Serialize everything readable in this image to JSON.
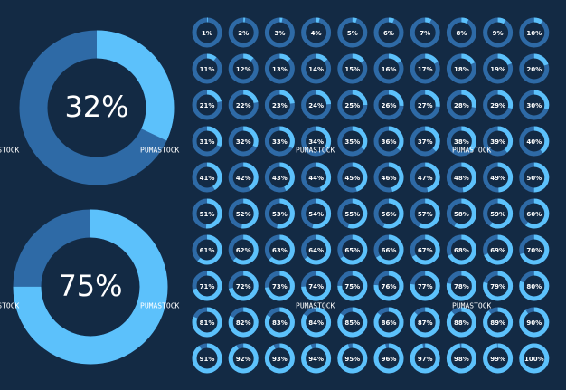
{
  "big_rings": {
    "values": [
      32,
      75
    ],
    "value_labels": [
      "32%",
      "75%"
    ]
  },
  "small_rings": {
    "values": [
      1,
      2,
      3,
      4,
      5,
      6,
      7,
      8,
      9,
      10,
      11,
      12,
      13,
      14,
      15,
      16,
      17,
      18,
      19,
      20,
      21,
      22,
      23,
      24,
      25,
      26,
      27,
      28,
      29,
      30,
      31,
      32,
      33,
      34,
      35,
      36,
      37,
      38,
      39,
      40,
      41,
      42,
      43,
      44,
      45,
      46,
      47,
      48,
      49,
      50,
      51,
      52,
      53,
      54,
      55,
      56,
      57,
      58,
      59,
      60,
      61,
      62,
      63,
      64,
      65,
      66,
      67,
      68,
      69,
      70,
      71,
      72,
      73,
      74,
      75,
      76,
      77,
      78,
      79,
      80,
      81,
      82,
      83,
      84,
      85,
      86,
      87,
      88,
      89,
      90,
      91,
      92,
      93,
      94,
      95,
      96,
      97,
      98,
      99,
      100
    ],
    "value_labels": [
      "1%",
      "2%",
      "3%",
      "4%",
      "5%",
      "6%",
      "7%",
      "8%",
      "9%",
      "10%",
      "11%",
      "12%",
      "13%",
      "14%",
      "15%",
      "16%",
      "17%",
      "18%",
      "19%",
      "20%",
      "21%",
      "22%",
      "23%",
      "24%",
      "25%",
      "26%",
      "27%",
      "28%",
      "29%",
      "30%",
      "31%",
      "32%",
      "33%",
      "34%",
      "35%",
      "36%",
      "37%",
      "38%",
      "39%",
      "40%",
      "41%",
      "42%",
      "43%",
      "44%",
      "45%",
      "46%",
      "47%",
      "48%",
      "49%",
      "50%",
      "51%",
      "52%",
      "53%",
      "54%",
      "55%",
      "56%",
      "57%",
      "58%",
      "59%",
      "60%",
      "61%",
      "62%",
      "63%",
      "64%",
      "65%",
      "66%",
      "67%",
      "68%",
      "69%",
      "70%",
      "71%",
      "72%",
      "73%",
      "74%",
      "75%",
      "76%",
      "77%",
      "78%",
      "79%",
      "80%",
      "81%",
      "82%",
      "83%",
      "84%",
      "85%",
      "86%",
      "87%",
      "88%",
      "89%",
      "90%",
      "91%",
      "92%",
      "93%",
      "94%",
      "95%",
      "96%",
      "97%",
      "98%",
      "99%",
      "100%"
    ]
  },
  "watermarks": [
    "PUMASTOCK",
    "PUMASTOCK",
    "PUMASTOCK",
    "PUMASTOCK",
    "PUMASTOCK",
    "PUMASTOCK",
    "PUMASTOCK",
    "PUMASTOCK"
  ]
}
